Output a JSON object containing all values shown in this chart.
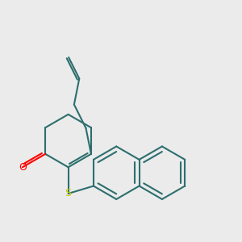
{
  "bg_color": "#ebebeb",
  "bond_color": "#2d6e6e",
  "atom_O_color": "#ff0000",
  "atom_S_color": "#cccc00",
  "line_width": 1.5,
  "figsize": [
    3.0,
    3.0
  ],
  "dpi": 100,
  "xlim": [
    -0.5,
    8.5
  ],
  "ylim": [
    -1.0,
    7.5
  ]
}
